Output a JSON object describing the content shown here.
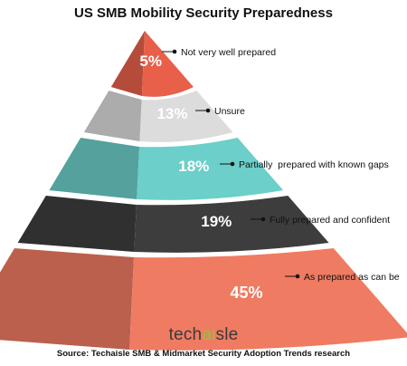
{
  "chart_data": {
    "type": "pyramid",
    "title": "US SMB Mobility Security Preparedness",
    "segments": [
      {
        "label": "Not very well prepared",
        "value": 5,
        "value_text": "5%",
        "color": "#e8604a"
      },
      {
        "label": "Unsure",
        "value": 13,
        "value_text": "13%",
        "color": "#dcdcdc"
      },
      {
        "label": "Partially  prepared with known gaps",
        "value": 18,
        "value_text": "18%",
        "color": "#6ccfc9"
      },
      {
        "label": "Fully prepared and confident",
        "value": 19,
        "value_text": "19%",
        "color": "#3d3d3d"
      },
      {
        "label": "As prepared as can be",
        "value": 45,
        "value_text": "45%",
        "color": "#ef7b62"
      }
    ]
  },
  "footer": {
    "logo_text": "techaisle",
    "source": "Source: Techaisle SMB & Midmarket Security Adoption Trends research"
  }
}
